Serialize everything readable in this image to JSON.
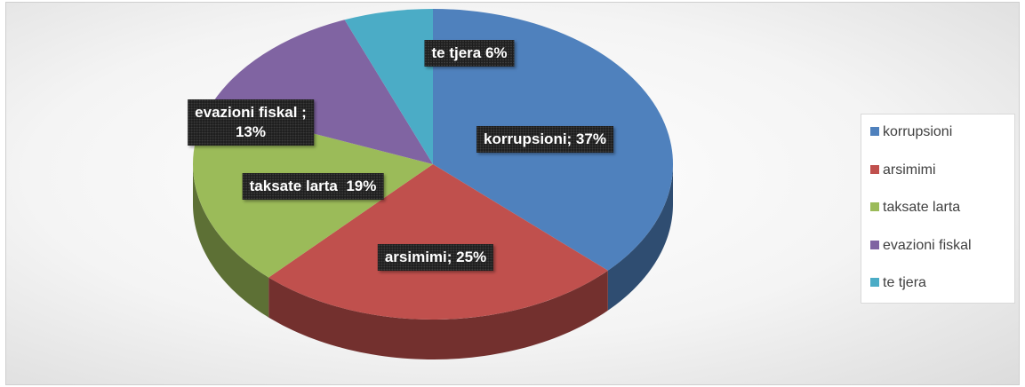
{
  "chart_data": {
    "type": "pie",
    "categories": [
      "korrupsioni",
      "arsimimi",
      "taksate larta",
      "evazioni fiskal",
      "te tjera"
    ],
    "values": [
      37,
      25,
      19,
      13,
      6
    ],
    "value_labels": [
      "korrupsioni; 37%",
      "arsimimi; 25%",
      "taksate larta  19%",
      "evazioni fiskal ;\n13%",
      "te tjera 6%"
    ],
    "colors": [
      "#4f81bd",
      "#c0504d",
      "#9bbb59",
      "#8064a2",
      "#4bacc6"
    ],
    "legend": "right"
  }
}
